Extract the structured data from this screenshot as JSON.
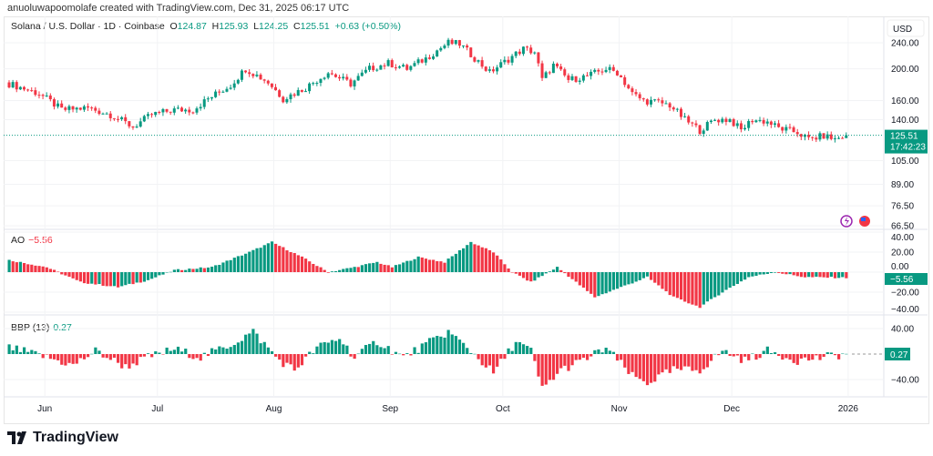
{
  "credit": "anuoluwapoomolafe created with TradingView.com, Dec 31, 2025 06:17 UTC",
  "legend": {
    "symbol": "Solana / U.S. Dollar · 1D · Coinbase",
    "o_label": "O",
    "o": "124.87",
    "h_label": "H",
    "h": "125.93",
    "l_label": "L",
    "l": "124.25",
    "c_label": "C",
    "c": "125.51",
    "change": "+0.63 (+0.50%)"
  },
  "currency": "USD",
  "logo": "TradingView",
  "icons": [
    "lightning-icon",
    "us-flag-icon"
  ],
  "colors": {
    "up": "#089981",
    "down": "#f23645",
    "axis_text": "#131722"
  },
  "chart_data": [
    {
      "type": "candlestick",
      "pane": "price",
      "scale": "log",
      "title": "Solana / U.S. Dollar · 1D · Coinbase",
      "yticks": [
        "240.00",
        "200.00",
        "160.00",
        "140.00",
        "105.00",
        "89.00",
        "76.50",
        "66.50"
      ],
      "last_price": "125.51",
      "countdown": "17:42:23",
      "closes_approx": [
        [
          "2025-05-22",
          180
        ],
        [
          "2025-05-30",
          168
        ],
        [
          "2025-06-05",
          150
        ],
        [
          "2025-06-12",
          152
        ],
        [
          "2025-06-18",
          145
        ],
        [
          "2025-06-24",
          133
        ],
        [
          "2025-06-29",
          145
        ],
        [
          "2025-07-05",
          150
        ],
        [
          "2025-07-10",
          150
        ],
        [
          "2025-07-14",
          162
        ],
        [
          "2025-07-20",
          178
        ],
        [
          "2025-07-24",
          200
        ],
        [
          "2025-07-30",
          182
        ],
        [
          "2025-08-03",
          162
        ],
        [
          "2025-08-09",
          175
        ],
        [
          "2025-08-15",
          195
        ],
        [
          "2025-08-21",
          180
        ],
        [
          "2025-08-26",
          200
        ],
        [
          "2025-08-31",
          208
        ],
        [
          "2025-09-05",
          200
        ],
        [
          "2025-09-10",
          215
        ],
        [
          "2025-09-16",
          240
        ],
        [
          "2025-09-19",
          238
        ],
        [
          "2025-09-24",
          210
        ],
        [
          "2025-09-27",
          195
        ],
        [
          "2025-10-01",
          210
        ],
        [
          "2025-10-06",
          230
        ],
        [
          "2025-10-09",
          225
        ],
        [
          "2025-10-11",
          185
        ],
        [
          "2025-10-14",
          205
        ],
        [
          "2025-10-18",
          185
        ],
        [
          "2025-10-23",
          190
        ],
        [
          "2025-10-28",
          200
        ],
        [
          "2025-10-31",
          195
        ],
        [
          "2025-11-04",
          168
        ],
        [
          "2025-11-07",
          160
        ],
        [
          "2025-11-11",
          158
        ],
        [
          "2025-11-14",
          155
        ],
        [
          "2025-11-18",
          140
        ],
        [
          "2025-11-22",
          130
        ],
        [
          "2025-11-26",
          140
        ],
        [
          "2025-11-30",
          140
        ],
        [
          "2025-12-03",
          130
        ],
        [
          "2025-12-06",
          140
        ],
        [
          "2025-12-10",
          138
        ],
        [
          "2025-12-13",
          132
        ],
        [
          "2025-12-18",
          128
        ],
        [
          "2025-12-21",
          122
        ],
        [
          "2025-12-25",
          125
        ],
        [
          "2025-12-28",
          122
        ],
        [
          "2025-12-31",
          125.51
        ]
      ]
    },
    {
      "type": "histogram",
      "pane": "AO",
      "label": "AO",
      "value": "−5.56",
      "yticks": [
        "40.00",
        "20.00",
        "0.00",
        "−20.00",
        "−40.00"
      ],
      "values_approx": [
        [
          "2025-05-22",
          12
        ],
        [
          "2025-06-01",
          5
        ],
        [
          "2025-06-10",
          -10
        ],
        [
          "2025-06-20",
          -15
        ],
        [
          "2025-06-28",
          -8
        ],
        [
          "2025-07-05",
          2
        ],
        [
          "2025-07-15",
          5
        ],
        [
          "2025-07-25",
          20
        ],
        [
          "2025-07-31",
          30
        ],
        [
          "2025-08-08",
          15
        ],
        [
          "2025-08-15",
          0
        ],
        [
          "2025-08-22",
          5
        ],
        [
          "2025-08-28",
          10
        ],
        [
          "2025-09-01",
          5
        ],
        [
          "2025-09-08",
          15
        ],
        [
          "2025-09-15",
          10
        ],
        [
          "2025-09-22",
          30
        ],
        [
          "2025-09-28",
          20
        ],
        [
          "2025-10-03",
          0
        ],
        [
          "2025-10-08",
          -10
        ],
        [
          "2025-10-15",
          5
        ],
        [
          "2025-10-20",
          -10
        ],
        [
          "2025-10-25",
          -25
        ],
        [
          "2025-11-01",
          -15
        ],
        [
          "2025-11-08",
          -5
        ],
        [
          "2025-11-15",
          -25
        ],
        [
          "2025-11-22",
          -35
        ],
        [
          "2025-11-28",
          -20
        ],
        [
          "2025-12-05",
          -5
        ],
        [
          "2025-12-12",
          0
        ],
        [
          "2025-12-20",
          -5
        ],
        [
          "2025-12-31",
          -5.56
        ]
      ]
    },
    {
      "type": "histogram",
      "pane": "BBP",
      "label": "BBP (13)",
      "value": "0.27",
      "yticks": [
        "40.00",
        "−40.00"
      ],
      "values_approx": [
        [
          "2025-05-22",
          10
        ],
        [
          "2025-06-01",
          -5
        ],
        [
          "2025-06-08",
          -18
        ],
        [
          "2025-06-14",
          5
        ],
        [
          "2025-06-22",
          -20
        ],
        [
          "2025-06-28",
          -5
        ],
        [
          "2025-07-05",
          8
        ],
        [
          "2025-07-12",
          -5
        ],
        [
          "2025-07-20",
          15
        ],
        [
          "2025-07-26",
          35
        ],
        [
          "2025-08-02",
          -10
        ],
        [
          "2025-08-06",
          -25
        ],
        [
          "2025-08-12",
          10
        ],
        [
          "2025-08-18",
          25
        ],
        [
          "2025-08-22",
          -5
        ],
        [
          "2025-08-28",
          20
        ],
        [
          "2025-09-04",
          -5
        ],
        [
          "2025-09-10",
          15
        ],
        [
          "2025-09-16",
          35
        ],
        [
          "2025-09-22",
          5
        ],
        [
          "2025-09-28",
          -30
        ],
        [
          "2025-10-04",
          20
        ],
        [
          "2025-10-08",
          5
        ],
        [
          "2025-10-11",
          -55
        ],
        [
          "2025-10-16",
          -25
        ],
        [
          "2025-10-22",
          -10
        ],
        [
          "2025-10-28",
          10
        ],
        [
          "2025-11-04",
          -35
        ],
        [
          "2025-11-08",
          -45
        ],
        [
          "2025-11-15",
          -25
        ],
        [
          "2025-11-22",
          -25
        ],
        [
          "2025-11-28",
          5
        ],
        [
          "2025-12-04",
          -10
        ],
        [
          "2025-12-10",
          5
        ],
        [
          "2025-12-18",
          -10
        ],
        [
          "2025-12-25",
          -5
        ],
        [
          "2025-12-31",
          0.27
        ]
      ]
    },
    {
      "type": "time_axis",
      "xticks": [
        "Jun",
        "Jul",
        "Aug",
        "Sep",
        "Oct",
        "Nov",
        "Dec",
        "2026"
      ]
    }
  ]
}
